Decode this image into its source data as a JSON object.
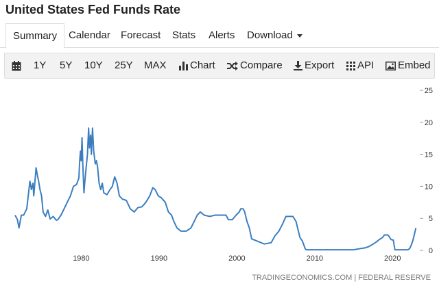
{
  "page": {
    "title": "United States Fed Funds Rate"
  },
  "tabs": [
    {
      "label": "Summary",
      "active": true
    },
    {
      "label": "Calendar"
    },
    {
      "label": "Forecast"
    },
    {
      "label": "Stats"
    },
    {
      "label": "Alerts"
    },
    {
      "label": "Download"
    }
  ],
  "toolbar": {
    "calendar_icon": "calendar-icon",
    "ranges": [
      "1Y",
      "5Y",
      "10Y",
      "25Y",
      "MAX"
    ],
    "chart_label": "Chart",
    "compare_label": "Compare",
    "export_label": "Export",
    "api_label": "API",
    "embed_label": "Embed"
  },
  "colors": {
    "line": "#3a7ebf",
    "grid": "#e6e6e6",
    "text": "#333333"
  },
  "chart_data": {
    "type": "line",
    "title": "",
    "xlabel": "",
    "ylabel": "",
    "x_ticks": [
      "1980",
      "1990",
      "2000",
      "2010",
      "2020"
    ],
    "y_ticks": [
      "0",
      "5",
      "10",
      "15",
      "20",
      "25"
    ],
    "xlim": [
      1971.5,
      2023.5
    ],
    "ylim": [
      0,
      25
    ],
    "grid": false,
    "source": "TRADINGECONOMICS.COM | FEDERAL RESERVE",
    "series": [
      {
        "x": [
          1971.5,
          1971.8,
          1972.0,
          1972.3,
          1972.6,
          1973.0,
          1973.4,
          1973.6,
          1973.8,
          1973.9,
          1974.2,
          1974.4,
          1974.5,
          1974.7,
          1974.9,
          1975.1,
          1975.4,
          1975.7,
          1976.0,
          1976.4,
          1976.8,
          1977.0,
          1977.4,
          1977.8,
          1978.2,
          1978.6,
          1979.0,
          1979.4,
          1979.7,
          1979.8,
          1979.9,
          1980.0,
          1980.1,
          1980.2,
          1980.35,
          1980.45,
          1980.6,
          1980.8,
          1980.95,
          1981.05,
          1981.2,
          1981.3,
          1981.45,
          1981.6,
          1981.8,
          1981.95,
          1982.1,
          1982.3,
          1982.5,
          1982.7,
          1982.9,
          1983.3,
          1983.7,
          1984.0,
          1984.3,
          1984.6,
          1984.9,
          1985.3,
          1985.8,
          1986.3,
          1986.8,
          1987.3,
          1987.8,
          1988.3,
          1988.8,
          1989.2,
          1989.5,
          1989.9,
          1990.3,
          1990.8,
          1991.2,
          1991.6,
          1991.9,
          1992.3,
          1992.8,
          1993.5,
          1994.1,
          1994.5,
          1994.9,
          1995.3,
          1995.8,
          1996.5,
          1997.2,
          1998.0,
          1998.6,
          1998.9,
          1999.4,
          1999.9,
          2000.3,
          2000.5,
          2000.8,
          2001.0,
          2001.3,
          2001.6,
          2001.9,
          2002.9,
          2003.5,
          2004.4,
          2004.9,
          2005.4,
          2005.9,
          2006.3,
          2006.6,
          2007.2,
          2007.6,
          2007.9,
          2008.1,
          2008.4,
          2008.8,
          2008.95,
          2009.5,
          2012.0,
          2015.0,
          2015.95,
          2016.5,
          2016.95,
          2017.4,
          2017.9,
          2018.3,
          2018.7,
          2018.95,
          2019.4,
          2019.6,
          2019.8,
          2020.1,
          2020.2,
          2020.3,
          2021.0,
          2022.0,
          2022.2,
          2022.4,
          2022.6,
          2022.8,
          2023.0
        ],
        "y": [
          5.5,
          4.8,
          3.5,
          5.5,
          5.5,
          6.5,
          10.8,
          9.5,
          10.5,
          8.5,
          12.9,
          11.5,
          11.0,
          9.5,
          8.5,
          6.0,
          5.3,
          6.3,
          4.9,
          5.3,
          4.7,
          4.8,
          5.5,
          6.5,
          7.5,
          8.5,
          10.0,
          10.3,
          11.3,
          14.0,
          15.5,
          14.0,
          17.6,
          13.5,
          9.0,
          10.5,
          12.5,
          15.0,
          19.1,
          16.0,
          18.0,
          15.0,
          19.1,
          15.5,
          13.5,
          14.0,
          13.0,
          10.5,
          9.5,
          10.5,
          9.0,
          8.7,
          9.5,
          10.0,
          11.5,
          10.5,
          8.5,
          8.0,
          7.8,
          6.5,
          6.0,
          6.7,
          6.8,
          7.5,
          8.5,
          9.8,
          9.5,
          8.5,
          8.2,
          7.5,
          6.0,
          5.5,
          4.5,
          3.5,
          3.0,
          3.0,
          3.5,
          4.5,
          5.5,
          6.0,
          5.5,
          5.3,
          5.5,
          5.5,
          5.5,
          4.8,
          4.8,
          5.5,
          6.0,
          6.5,
          6.5,
          6.0,
          4.5,
          3.5,
          1.8,
          1.3,
          1.0,
          1.2,
          2.3,
          3.0,
          4.2,
          5.3,
          5.3,
          5.3,
          4.5,
          3.0,
          2.0,
          1.5,
          0.2,
          0.1,
          0.1,
          0.1,
          0.1,
          0.3,
          0.4,
          0.6,
          0.9,
          1.3,
          1.7,
          2.0,
          2.4,
          2.4,
          2.1,
          1.7,
          1.6,
          0.8,
          0.1,
          0.1,
          0.1,
          0.3,
          0.8,
          1.5,
          2.5,
          3.5
        ]
      }
    ]
  }
}
